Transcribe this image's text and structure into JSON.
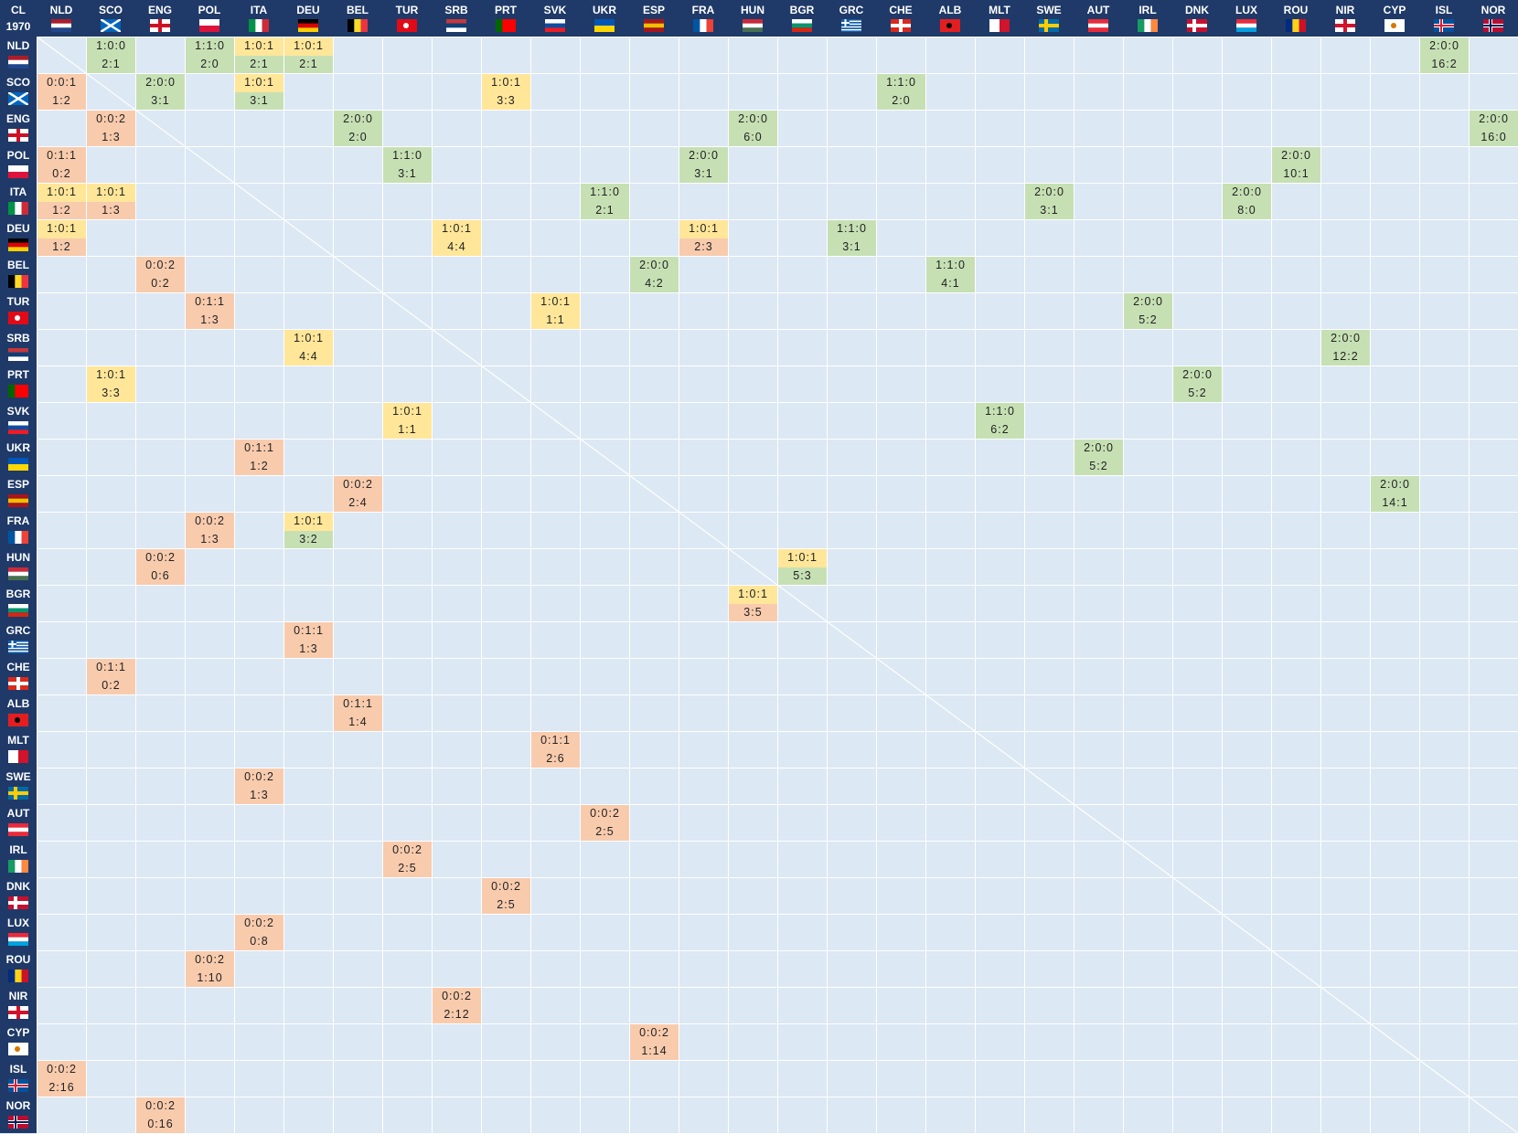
{
  "table": {
    "corner": "CL",
    "season": "1970",
    "teams": [
      "NLD",
      "SCO",
      "ENG",
      "POL",
      "ITA",
      "DEU",
      "BEL",
      "TUR",
      "SRB",
      "PRT",
      "SVK",
      "UKR",
      "ESP",
      "FRA",
      "HUN",
      "BGR",
      "GRC",
      "CHE",
      "ALB",
      "MLT",
      "SWE",
      "AUT",
      "IRL",
      "DNK",
      "LUX",
      "ROU",
      "NIR",
      "CYP",
      "ISL",
      "NOR"
    ],
    "rows": [
      {
        "SCO": {
          "record": "1:0:0",
          "score": "2:1",
          "top": "win",
          "bottom": "win"
        },
        "POL": {
          "record": "1:1:0",
          "score": "2:0",
          "top": "win",
          "bottom": "win"
        },
        "ITA": {
          "record": "1:0:1",
          "score": "2:1",
          "top": "draw",
          "bottom": "win"
        },
        "DEU": {
          "record": "1:0:1",
          "score": "2:1",
          "top": "draw",
          "bottom": "win"
        },
        "ISL": {
          "record": "2:0:0",
          "score": "16:2",
          "top": "win",
          "bottom": "win"
        }
      },
      {
        "NLD": {
          "record": "0:0:1",
          "score": "1:2",
          "top": "loss",
          "bottom": "loss"
        },
        "ENG": {
          "record": "2:0:0",
          "score": "3:1",
          "top": "win",
          "bottom": "win"
        },
        "ITA": {
          "record": "1:0:1",
          "score": "3:1",
          "top": "draw",
          "bottom": "win"
        },
        "PRT": {
          "record": "1:0:1",
          "score": "3:3",
          "top": "draw",
          "bottom": "draw"
        },
        "CHE": {
          "record": "1:1:0",
          "score": "2:0",
          "top": "win",
          "bottom": "win"
        }
      },
      {
        "SCO": {
          "record": "0:0:2",
          "score": "1:3",
          "top": "loss",
          "bottom": "loss"
        },
        "BEL": {
          "record": "2:0:0",
          "score": "2:0",
          "top": "win",
          "bottom": "win"
        },
        "HUN": {
          "record": "2:0:0",
          "score": "6:0",
          "top": "win",
          "bottom": "win"
        },
        "NOR": {
          "record": "2:0:0",
          "score": "16:0",
          "top": "win",
          "bottom": "win"
        }
      },
      {
        "NLD": {
          "record": "0:1:1",
          "score": "0:2",
          "top": "loss",
          "bottom": "loss"
        },
        "TUR": {
          "record": "1:1:0",
          "score": "3:1",
          "top": "win",
          "bottom": "win"
        },
        "FRA": {
          "record": "2:0:0",
          "score": "3:1",
          "top": "win",
          "bottom": "win"
        },
        "ROU": {
          "record": "2:0:0",
          "score": "10:1",
          "top": "win",
          "bottom": "win"
        }
      },
      {
        "NLD": {
          "record": "1:0:1",
          "score": "1:2",
          "top": "draw",
          "bottom": "loss"
        },
        "SCO": {
          "record": "1:0:1",
          "score": "1:3",
          "top": "draw",
          "bottom": "loss"
        },
        "UKR": {
          "record": "1:1:0",
          "score": "2:1",
          "top": "win",
          "bottom": "win"
        },
        "SWE": {
          "record": "2:0:0",
          "score": "3:1",
          "top": "win",
          "bottom": "win"
        },
        "LUX": {
          "record": "2:0:0",
          "score": "8:0",
          "top": "win",
          "bottom": "win"
        }
      },
      {
        "NLD": {
          "record": "1:0:1",
          "score": "1:2",
          "top": "draw",
          "bottom": "loss"
        },
        "SRB": {
          "record": "1:0:1",
          "score": "4:4",
          "top": "draw",
          "bottom": "draw"
        },
        "FRA": {
          "record": "1:0:1",
          "score": "2:3",
          "top": "draw",
          "bottom": "loss"
        },
        "GRC": {
          "record": "1:1:0",
          "score": "3:1",
          "top": "win",
          "bottom": "win"
        }
      },
      {
        "ENG": {
          "record": "0:0:2",
          "score": "0:2",
          "top": "loss",
          "bottom": "loss"
        },
        "ESP": {
          "record": "2:0:0",
          "score": "4:2",
          "top": "win",
          "bottom": "win"
        },
        "ALB": {
          "record": "1:1:0",
          "score": "4:1",
          "top": "win",
          "bottom": "win"
        }
      },
      {
        "POL": {
          "record": "0:1:1",
          "score": "1:3",
          "top": "loss",
          "bottom": "loss"
        },
        "SVK": {
          "record": "1:0:1",
          "score": "1:1",
          "top": "draw",
          "bottom": "draw"
        },
        "IRL": {
          "record": "2:0:0",
          "score": "5:2",
          "top": "win",
          "bottom": "win"
        }
      },
      {
        "DEU": {
          "record": "1:0:1",
          "score": "4:4",
          "top": "draw",
          "bottom": "draw"
        },
        "NIR": {
          "record": "2:0:0",
          "score": "12:2",
          "top": "win",
          "bottom": "win"
        }
      },
      {
        "SCO": {
          "record": "1:0:1",
          "score": "3:3",
          "top": "draw",
          "bottom": "draw"
        },
        "DNK": {
          "record": "2:0:0",
          "score": "5:2",
          "top": "win",
          "bottom": "win"
        }
      },
      {
        "TUR": {
          "record": "1:0:1",
          "score": "1:1",
          "top": "draw",
          "bottom": "draw"
        },
        "MLT": {
          "record": "1:1:0",
          "score": "6:2",
          "top": "win",
          "bottom": "win"
        }
      },
      {
        "ITA": {
          "record": "0:1:1",
          "score": "1:2",
          "top": "loss",
          "bottom": "loss"
        },
        "AUT": {
          "record": "2:0:0",
          "score": "5:2",
          "top": "win",
          "bottom": "win"
        }
      },
      {
        "BEL": {
          "record": "0:0:2",
          "score": "2:4",
          "top": "loss",
          "bottom": "loss"
        },
        "CYP": {
          "record": "2:0:0",
          "score": "14:1",
          "top": "win",
          "bottom": "win"
        }
      },
      {
        "POL": {
          "record": "0:0:2",
          "score": "1:3",
          "top": "loss",
          "bottom": "loss"
        },
        "DEU": {
          "record": "1:0:1",
          "score": "3:2",
          "top": "draw",
          "bottom": "win"
        }
      },
      {
        "ENG": {
          "record": "0:0:2",
          "score": "0:6",
          "top": "loss",
          "bottom": "loss"
        },
        "BGR": {
          "record": "1:0:1",
          "score": "5:3",
          "top": "draw",
          "bottom": "win"
        }
      },
      {
        "HUN": {
          "record": "1:0:1",
          "score": "3:5",
          "top": "draw",
          "bottom": "loss"
        }
      },
      {
        "DEU": {
          "record": "0:1:1",
          "score": "1:3",
          "top": "loss",
          "bottom": "loss"
        }
      },
      {
        "SCO": {
          "record": "0:1:1",
          "score": "0:2",
          "top": "loss",
          "bottom": "loss"
        }
      },
      {
        "BEL": {
          "record": "0:1:1",
          "score": "1:4",
          "top": "loss",
          "bottom": "loss"
        }
      },
      {
        "SVK": {
          "record": "0:1:1",
          "score": "2:6",
          "top": "loss",
          "bottom": "loss"
        }
      },
      {
        "ITA": {
          "record": "0:0:2",
          "score": "1:3",
          "top": "loss",
          "bottom": "loss"
        }
      },
      {
        "UKR": {
          "record": "0:0:2",
          "score": "2:5",
          "top": "loss",
          "bottom": "loss"
        }
      },
      {
        "TUR": {
          "record": "0:0:2",
          "score": "2:5",
          "top": "loss",
          "bottom": "loss"
        }
      },
      {
        "PRT": {
          "record": "0:0:2",
          "score": "2:5",
          "top": "loss",
          "bottom": "loss"
        }
      },
      {
        "ITA": {
          "record": "0:0:2",
          "score": "0:8",
          "top": "loss",
          "bottom": "loss"
        }
      },
      {
        "POL": {
          "record": "0:0:2",
          "score": "1:10",
          "top": "loss",
          "bottom": "loss"
        }
      },
      {
        "SRB": {
          "record": "0:0:2",
          "score": "2:12",
          "top": "loss",
          "bottom": "loss"
        }
      },
      {
        "ESP": {
          "record": "0:0:2",
          "score": "1:14",
          "top": "loss",
          "bottom": "loss"
        }
      },
      {
        "NLD": {
          "record": "0:0:2",
          "score": "2:16",
          "top": "loss",
          "bottom": "loss"
        }
      },
      {
        "ENG": {
          "record": "0:0:2",
          "score": "0:16",
          "top": "loss",
          "bottom": "loss"
        }
      }
    ]
  }
}
